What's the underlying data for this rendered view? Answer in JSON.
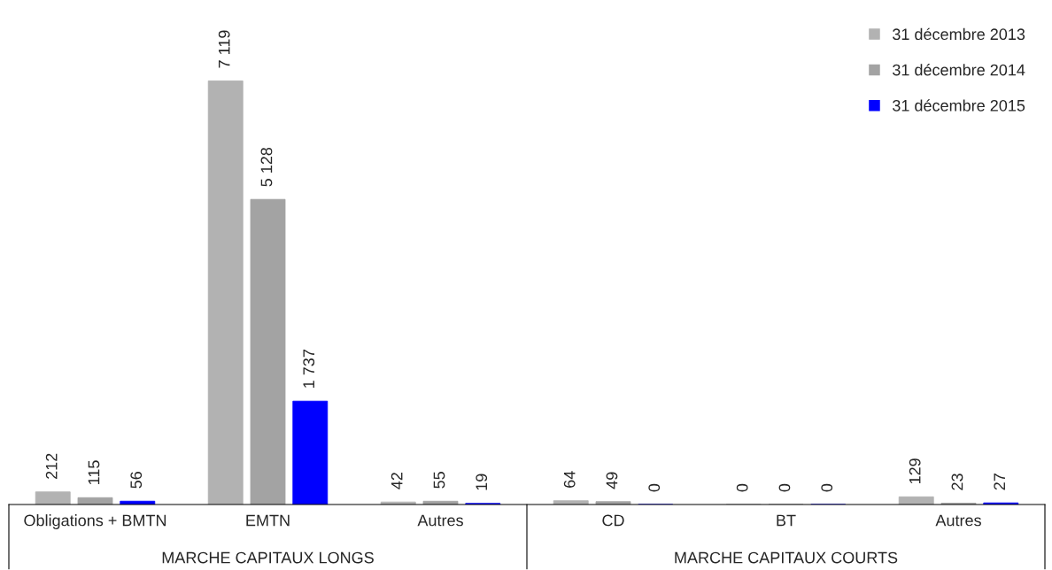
{
  "chart_data": {
    "type": "bar",
    "categories": [
      "Obligations + BMTN",
      "EMTN",
      "Autres",
      "CD",
      "BT",
      "Autres"
    ],
    "series": [
      {
        "name": "31 décembre 2013",
        "color": "#b2b2b2",
        "values": [
          212,
          7119,
          42,
          64,
          0,
          129
        ],
        "value_labels": [
          "212",
          "7 119",
          "42",
          "64",
          "0",
          "129"
        ]
      },
      {
        "name": "31 décembre 2014",
        "color": "#a3a3a3",
        "values": [
          115,
          5128,
          55,
          49,
          0,
          23
        ],
        "value_labels": [
          "115",
          "5 128",
          "55",
          "49",
          "0",
          "23"
        ]
      },
      {
        "name": "31 décembre 2015",
        "color": "#0000ff",
        "values": [
          56,
          1737,
          19,
          0,
          0,
          27
        ],
        "value_labels": [
          "56",
          "1 737",
          "19",
          "0",
          "0",
          "27"
        ]
      }
    ],
    "annotations": [
      "MARCHE CAPITAUX LONGS",
      "MARCHE CAPITAUX COURTS"
    ],
    "legend": "top right",
    "grid": false
  }
}
